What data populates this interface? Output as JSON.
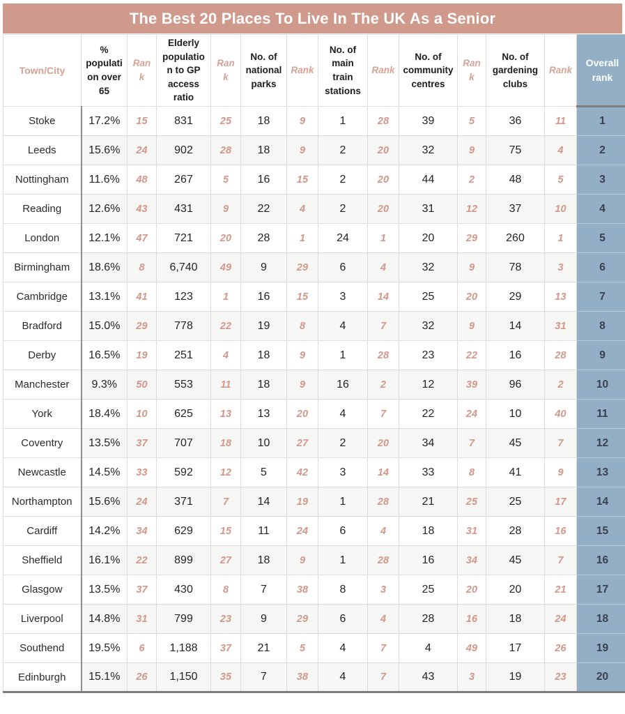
{
  "colors": {
    "accent_salmon": "#cf9a8b",
    "rank_text_salmon": "#d0988b",
    "overall_blue": "#92afc5",
    "overall_text": "#3b3f4d",
    "row_alt_grey": "#f6f6f5",
    "grid_light": "#dcdcdc",
    "grid_dark": "#7d7d7d"
  },
  "chart_data": {
    "type": "table",
    "title": "The Best 20 Places To Live In The UK As a Senior",
    "columns": [
      {
        "name": "town-city",
        "kind": "town",
        "label": "Town/City"
      },
      {
        "name": "pct-population-over-65",
        "kind": "value",
        "label": "% population over 65"
      },
      {
        "name": "rank-pct-over-65",
        "kind": "rank",
        "label": "Rank"
      },
      {
        "name": "elderly-gp-ratio",
        "kind": "value",
        "label": "Elderly population to GP access ratio"
      },
      {
        "name": "rank-gp-ratio",
        "kind": "rank",
        "label": "Rank"
      },
      {
        "name": "national-parks",
        "kind": "value",
        "label": "No. of national parks"
      },
      {
        "name": "rank-national-parks",
        "kind": "rank",
        "label": "Rank"
      },
      {
        "name": "main-train-stations",
        "kind": "value",
        "label": "No. of main train stations"
      },
      {
        "name": "rank-train-stations",
        "kind": "rank",
        "label": "Rank"
      },
      {
        "name": "community-centres",
        "kind": "value",
        "label": "No. of community centres"
      },
      {
        "name": "rank-community-centres",
        "kind": "rank",
        "label": "Rank"
      },
      {
        "name": "gardening-clubs",
        "kind": "value",
        "label": "No. of gardening clubs"
      },
      {
        "name": "rank-gardening-clubs",
        "kind": "rank",
        "label": "Rank"
      },
      {
        "name": "overall-rank",
        "kind": "overall",
        "label": "Overall rank"
      }
    ],
    "rows": [
      [
        "Stoke",
        "17.2%",
        "15",
        "831",
        "25",
        "18",
        "9",
        "1",
        "28",
        "39",
        "5",
        "36",
        "11",
        "1"
      ],
      [
        "Leeds",
        "15.6%",
        "24",
        "902",
        "28",
        "18",
        "9",
        "2",
        "20",
        "32",
        "9",
        "75",
        "4",
        "2"
      ],
      [
        "Nottingham",
        "11.6%",
        "48",
        "267",
        "5",
        "16",
        "15",
        "2",
        "20",
        "44",
        "2",
        "48",
        "5",
        "3"
      ],
      [
        "Reading",
        "12.6%",
        "43",
        "431",
        "9",
        "22",
        "4",
        "2",
        "20",
        "31",
        "12",
        "37",
        "10",
        "4"
      ],
      [
        "London",
        "12.1%",
        "47",
        "721",
        "20",
        "28",
        "1",
        "24",
        "1",
        "20",
        "29",
        "260",
        "1",
        "5"
      ],
      [
        "Birmingham",
        "18.6%",
        "8",
        "6,740",
        "49",
        "9",
        "29",
        "6",
        "4",
        "32",
        "9",
        "78",
        "3",
        "6"
      ],
      [
        "Cambridge",
        "13.1%",
        "41",
        "123",
        "1",
        "16",
        "15",
        "3",
        "14",
        "25",
        "20",
        "29",
        "13",
        "7"
      ],
      [
        "Bradford",
        "15.0%",
        "29",
        "778",
        "22",
        "19",
        "8",
        "4",
        "7",
        "32",
        "9",
        "14",
        "31",
        "8"
      ],
      [
        "Derby",
        "16.5%",
        "19",
        "251",
        "4",
        "18",
        "9",
        "1",
        "28",
        "23",
        "22",
        "16",
        "28",
        "9"
      ],
      [
        "Manchester",
        "9.3%",
        "50",
        "553",
        "11",
        "18",
        "9",
        "16",
        "2",
        "12",
        "39",
        "96",
        "2",
        "10"
      ],
      [
        "York",
        "18.4%",
        "10",
        "625",
        "13",
        "13",
        "20",
        "4",
        "7",
        "22",
        "24",
        "10",
        "40",
        "11"
      ],
      [
        "Coventry",
        "13.5%",
        "37",
        "707",
        "18",
        "10",
        "27",
        "2",
        "20",
        "34",
        "7",
        "45",
        "7",
        "12"
      ],
      [
        "Newcastle",
        "14.5%",
        "33",
        "592",
        "12",
        "5",
        "42",
        "3",
        "14",
        "33",
        "8",
        "41",
        "9",
        "13"
      ],
      [
        "Northampton",
        "15.6%",
        "24",
        "371",
        "7",
        "14",
        "19",
        "1",
        "28",
        "21",
        "25",
        "25",
        "17",
        "14"
      ],
      [
        "Cardiff",
        "14.2%",
        "34",
        "629",
        "15",
        "11",
        "24",
        "6",
        "4",
        "18",
        "31",
        "28",
        "16",
        "15"
      ],
      [
        "Sheffield",
        "16.1%",
        "22",
        "899",
        "27",
        "18",
        "9",
        "1",
        "28",
        "16",
        "34",
        "45",
        "7",
        "16"
      ],
      [
        "Glasgow",
        "13.5%",
        "37",
        "430",
        "8",
        "7",
        "38",
        "8",
        "3",
        "25",
        "20",
        "20",
        "21",
        "17"
      ],
      [
        "Liverpool",
        "14.8%",
        "31",
        "799",
        "23",
        "9",
        "29",
        "6",
        "4",
        "28",
        "16",
        "18",
        "24",
        "18"
      ],
      [
        "Southend",
        "19.5%",
        "6",
        "1,188",
        "37",
        "21",
        "5",
        "4",
        "7",
        "4",
        "49",
        "17",
        "26",
        "19"
      ],
      [
        "Edinburgh",
        "15.1%",
        "26",
        "1,150",
        "35",
        "7",
        "38",
        "4",
        "7",
        "43",
        "3",
        "19",
        "23",
        "20"
      ]
    ]
  }
}
